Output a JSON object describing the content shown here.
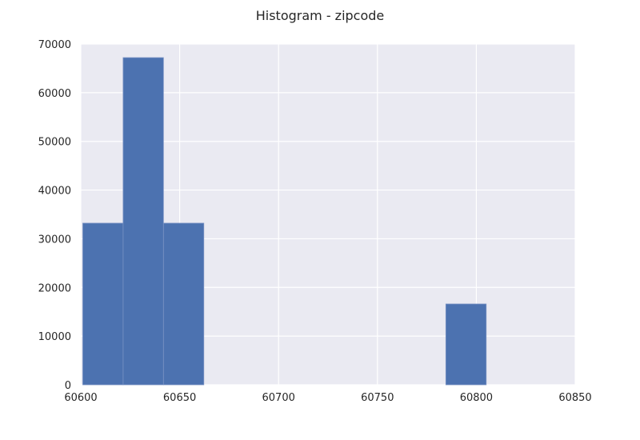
{
  "chart_data": {
    "type": "bar",
    "title": "Histogram - zipcode",
    "xlabel": "",
    "ylabel": "",
    "xlim": [
      60600,
      60850
    ],
    "ylim": [
      0,
      70000
    ],
    "x_ticks": [
      60600,
      60650,
      60700,
      60750,
      60800,
      60850
    ],
    "y_ticks": [
      0,
      10000,
      20000,
      30000,
      40000,
      50000,
      60000,
      70000
    ],
    "grid": true,
    "legend": "none",
    "bins": [
      {
        "start": 60601,
        "end": 60621.4,
        "count": 33200
      },
      {
        "start": 60621.4,
        "end": 60641.8,
        "count": 67200
      },
      {
        "start": 60641.8,
        "end": 60662.2,
        "count": 33200
      },
      {
        "start": 60662.2,
        "end": 60682.6,
        "count": 0
      },
      {
        "start": 60682.6,
        "end": 60703.0,
        "count": 0
      },
      {
        "start": 60703.0,
        "end": 60723.4,
        "count": 0
      },
      {
        "start": 60723.4,
        "end": 60743.8,
        "count": 0
      },
      {
        "start": 60743.8,
        "end": 60764.2,
        "count": 0
      },
      {
        "start": 60764.2,
        "end": 60784.6,
        "count": 0
      },
      {
        "start": 60784.6,
        "end": 60805.0,
        "count": 16600
      }
    ],
    "colors": {
      "bar": "#4c72b0",
      "plot_background": "#eaeaf2",
      "grid": "#ffffff"
    }
  }
}
